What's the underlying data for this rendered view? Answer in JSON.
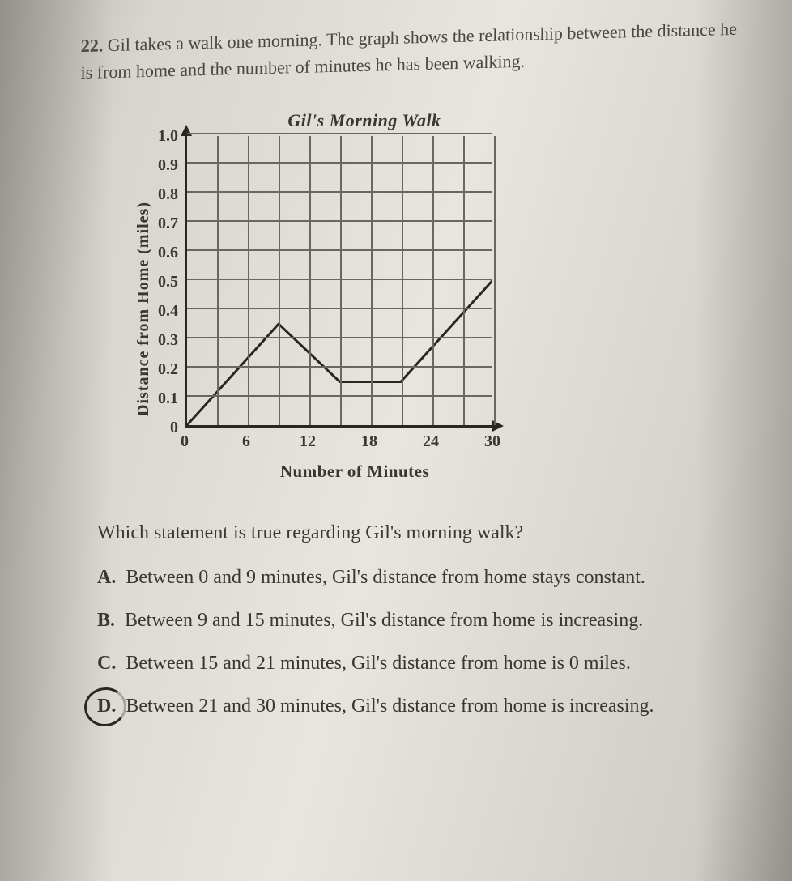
{
  "question": {
    "number": "22.",
    "text": "Gil takes a walk one morning. The graph shows the relationship between the distance he is from home and the number of minutes he has been walking."
  },
  "chart": {
    "type": "line",
    "title": "Gil's Morning Walk",
    "xlabel": "Number of Minutes",
    "ylabel": "Distance from Home (miles)",
    "xlim": [
      0,
      30
    ],
    "ylim": [
      0,
      1.0
    ],
    "xtick_step": 3,
    "ytick_step": 0.1,
    "xtick_labels_shown": [
      "0",
      "6",
      "12",
      "18",
      "24",
      "30"
    ],
    "ytick_labels_shown": [
      "1.0",
      "0.9",
      "0.8",
      "0.7",
      "0.6",
      "0.5",
      "0.4",
      "0.3",
      "0.2",
      "0.1",
      "0"
    ],
    "points": [
      {
        "x": 0,
        "y": 0.0
      },
      {
        "x": 9,
        "y": 0.35
      },
      {
        "x": 15,
        "y": 0.15
      },
      {
        "x": 21,
        "y": 0.15
      },
      {
        "x": 30,
        "y": 0.5
      }
    ],
    "line_color": "#2a2622",
    "line_width": 3,
    "grid_color": "#6a6662",
    "grid_width": 1.5,
    "axis_color": "#2a2622",
    "axis_width": 3,
    "background_color": "transparent",
    "title_fontsize": 22,
    "label_fontsize": 20,
    "tick_fontsize": 20
  },
  "prompt": "Which statement is true regarding Gil's morning walk?",
  "choices": [
    {
      "label": "A.",
      "text": "Between 0 and 9 minutes, Gil's distance from home stays constant."
    },
    {
      "label": "B.",
      "text": "Between 9 and 15 minutes, Gil's distance from home is increasing."
    },
    {
      "label": "C.",
      "text": "Between 15 and 21 minutes, Gil's distance from home is 0 miles."
    },
    {
      "label": "D.",
      "text": "Between 21 and 30 minutes, Gil's distance from home is increasing."
    }
  ],
  "selected_choice_index": 3
}
